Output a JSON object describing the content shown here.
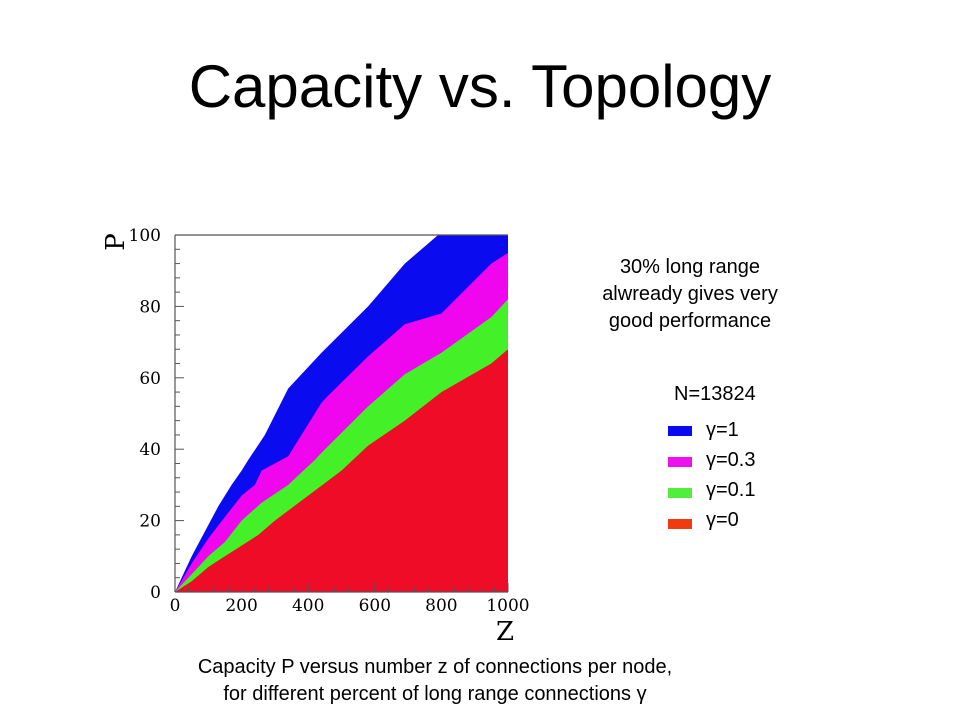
{
  "slide": {
    "title": "Capacity vs. Topology",
    "note_lines": [
      "30% long range",
      "alwready gives very",
      "good performance"
    ],
    "n_label": "N=13824",
    "caption_lines": [
      "Capacity P versus number z of connections per node,",
      "for different percent of long range connections γ"
    ]
  },
  "chart_data": {
    "type": "area",
    "title": "",
    "xlabel": "Z",
    "ylabel": "P",
    "xlim": [
      0,
      1000
    ],
    "ylim": [
      0,
      100
    ],
    "xticks": [
      0,
      200,
      400,
      600,
      800,
      1000
    ],
    "yticks": [
      0,
      20,
      40,
      60,
      80,
      100
    ],
    "grid": false,
    "legend_position": "right",
    "series": [
      {
        "name": "γ=1",
        "color": "#0b0bf0",
        "legend_color": "#0a0af2",
        "x": [
          0,
          50,
          90,
          130,
          170,
          200,
          220,
          270,
          340,
          440,
          580,
          690,
          790,
          1000
        ],
        "y": [
          0,
          10,
          17,
          24,
          30,
          34,
          37,
          44,
          57,
          67,
          80,
          92,
          100,
          100
        ]
      },
      {
        "name": "γ=0.3",
        "color": "#ef06ef",
        "legend_color": "#ee10ee",
        "x": [
          0,
          50,
          100,
          150,
          200,
          240,
          260,
          340,
          440,
          460,
          580,
          690,
          800,
          950,
          1000
        ],
        "y": [
          0,
          8,
          15,
          21,
          27,
          30,
          34,
          38,
          53,
          55,
          66,
          75,
          78,
          92,
          95
        ]
      },
      {
        "name": "γ=0.1",
        "color": "#44f028",
        "legend_color": "#52ee3c",
        "x": [
          0,
          50,
          100,
          150,
          200,
          260,
          340,
          420,
          440,
          580,
          690,
          800,
          950,
          1000
        ],
        "y": [
          0,
          5,
          10,
          14,
          20,
          25,
          30,
          37,
          39,
          52,
          61,
          67,
          77,
          82
        ]
      },
      {
        "name": "γ=0",
        "color": "#ef0c26",
        "legend_color": "#f03a10",
        "x": [
          0,
          50,
          100,
          150,
          200,
          250,
          300,
          400,
          500,
          580,
          690,
          800,
          950,
          1000
        ],
        "y": [
          0,
          3,
          7,
          10,
          13,
          16,
          20,
          27,
          34,
          41,
          48,
          56,
          64,
          68
        ]
      }
    ]
  }
}
